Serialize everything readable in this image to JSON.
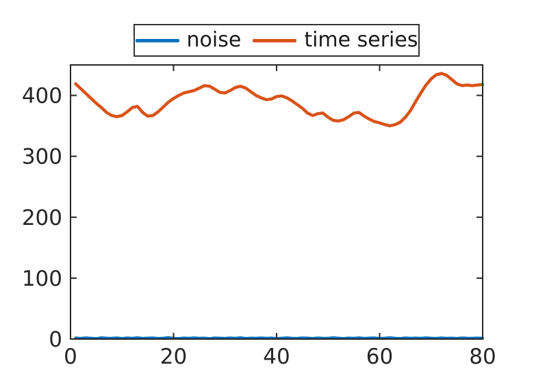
{
  "chart_data": {
    "type": "line",
    "title": "",
    "xlabel": "",
    "ylabel": "",
    "xlim": [
      0,
      80
    ],
    "ylim": [
      0,
      450
    ],
    "xticks": [
      0,
      20,
      40,
      60,
      80
    ],
    "yticks": [
      0,
      100,
      200,
      300,
      400
    ],
    "grid": false,
    "box": true,
    "tick_direction": "in",
    "legend_position": "top-center-outside",
    "axis_color": "#262626",
    "text_color": "#262626",
    "background": "#ffffff",
    "x": {
      "start": 1,
      "step": 1,
      "end": 80
    },
    "series": [
      {
        "name": "noise",
        "color": "#0072BD",
        "line_width": 4,
        "values": [
          1.8,
          1.2,
          2.1,
          1.5,
          0.9,
          2.3,
          1.6,
          1.3,
          2.0,
          1.0,
          1.9,
          1.4,
          2.2,
          1.2,
          1.7,
          2.0,
          1.1,
          1.6,
          2.4,
          1.4,
          1.0,
          1.8,
          1.5,
          2.1,
          1.3,
          1.7,
          0.9,
          2.0,
          1.6,
          1.2,
          1.9,
          1.4,
          2.3,
          1.1,
          1.7,
          1.5,
          2.0,
          1.3,
          1.8,
          1.0,
          1.6,
          2.1,
          1.4,
          1.2,
          1.9,
          1.7,
          1.1,
          2.0,
          1.5,
          1.3,
          2.2,
          1.6,
          1.0,
          1.8,
          1.4,
          2.1,
          1.2,
          1.7,
          1.9,
          1.1,
          1.6,
          2.3,
          1.4,
          1.0,
          2.0,
          1.5,
          1.8,
          1.3,
          2.1,
          1.6,
          1.2,
          1.9,
          1.4,
          1.7,
          1.1,
          2.0,
          1.6,
          1.3,
          1.8,
          1.5
        ]
      },
      {
        "name": "time series",
        "color": "#D95319",
        "line_width": 4.5,
        "values": [
          419,
          411,
          403,
          395,
          387,
          380,
          372,
          367,
          365,
          367,
          373,
          380,
          382,
          372,
          366,
          367,
          373,
          381,
          389,
          395,
          400,
          404,
          406,
          408,
          412,
          416,
          415,
          410,
          405,
          404,
          408,
          413,
          415,
          412,
          406,
          400,
          396,
          393,
          394,
          398,
          399,
          396,
          391,
          385,
          379,
          371,
          367,
          370,
          371,
          364,
          359,
          358,
          360,
          365,
          371,
          372,
          366,
          361,
          357,
          355,
          352,
          350,
          352,
          356,
          364,
          375,
          390,
          404,
          417,
          427,
          434,
          436,
          433,
          426,
          419,
          416,
          417,
          416,
          417,
          418
        ]
      }
    ]
  },
  "legend": {
    "items": [
      {
        "label": "noise"
      },
      {
        "label": "time series"
      }
    ]
  }
}
